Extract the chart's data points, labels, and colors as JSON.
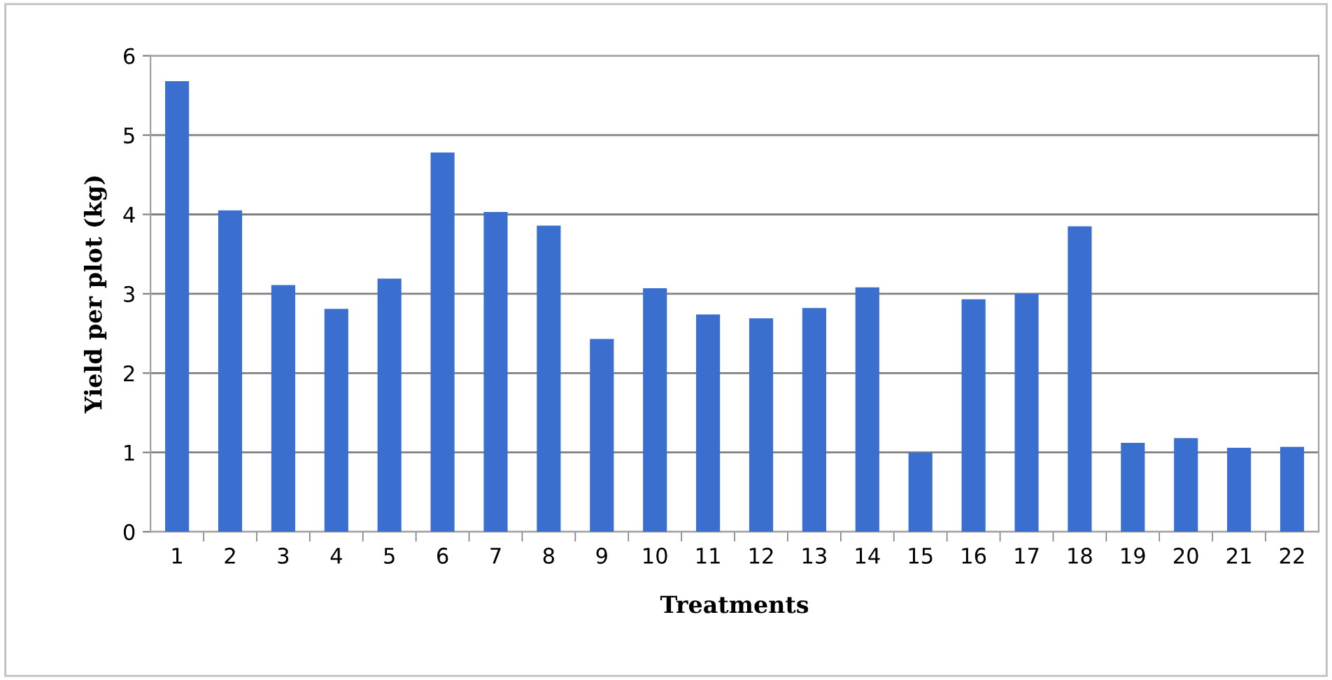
{
  "chart_data": {
    "type": "bar",
    "xlabel": "Treatments",
    "ylabel": "Yield per plot (kg)",
    "categories": [
      "1",
      "2",
      "3",
      "4",
      "5",
      "6",
      "7",
      "8",
      "9",
      "10",
      "11",
      "12",
      "13",
      "14",
      "15",
      "16",
      "17",
      "18",
      "19",
      "20",
      "21",
      "22"
    ],
    "values": [
      5.68,
      4.05,
      3.11,
      2.81,
      3.19,
      4.78,
      4.03,
      3.86,
      2.43,
      3.07,
      2.74,
      2.69,
      2.82,
      3.08,
      1.0,
      2.93,
      3.0,
      3.85,
      1.12,
      1.18,
      1.06,
      1.07
    ],
    "color": "#3a6fd0",
    "ylim": [
      0,
      6
    ],
    "yticks": [
      0,
      1,
      2,
      3,
      4,
      5,
      6
    ],
    "grid": "y",
    "legend": false
  }
}
